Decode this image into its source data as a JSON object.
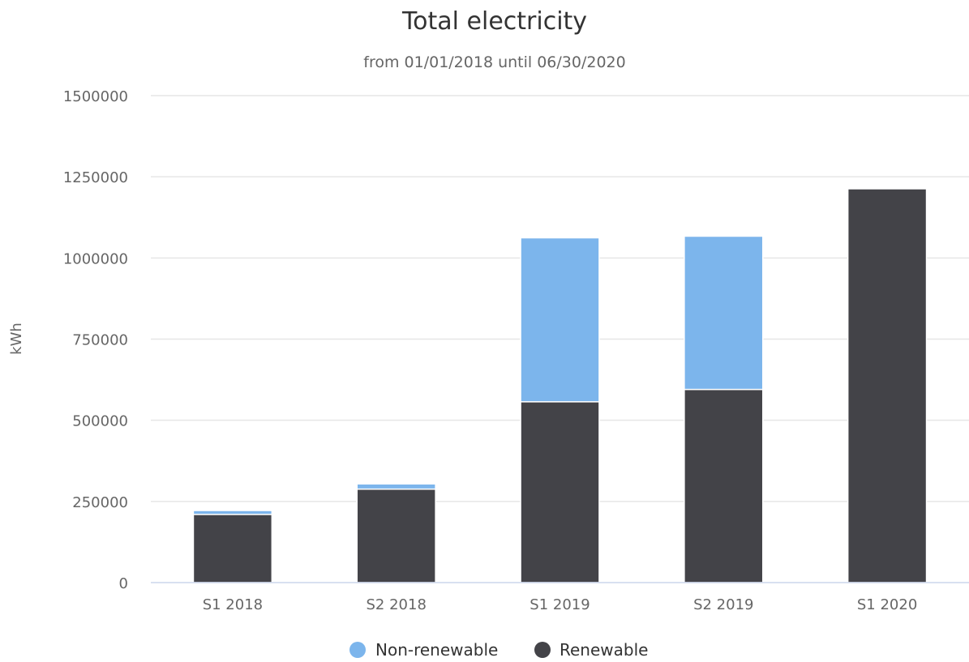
{
  "chart_data": {
    "type": "bar",
    "stacked": true,
    "title": "Total electricity",
    "subtitle": "from 01/01/2018 until 06/30/2020",
    "xlabel": "",
    "ylabel": "kWh",
    "ylim": [
      0,
      1500000
    ],
    "yticks": [
      "0",
      "250000",
      "500000",
      "750000",
      "1000000",
      "1250000",
      "1500000"
    ],
    "categories": [
      "S1 2018",
      "S2 2018",
      "S1 2019",
      "S2 2019",
      "S1 2020"
    ],
    "series": [
      {
        "name": "Renewable",
        "color": "#434348",
        "values": [
          210000,
          288000,
          557000,
          595000,
          1213000
        ]
      },
      {
        "name": "Non-renewable",
        "color": "#7cb5ec",
        "values": [
          12000,
          16000,
          505000,
          472000,
          0
        ]
      }
    ],
    "legend": {
      "placement": "bottom-center",
      "order": [
        "Non-renewable",
        "Renewable"
      ]
    },
    "grid": true
  }
}
